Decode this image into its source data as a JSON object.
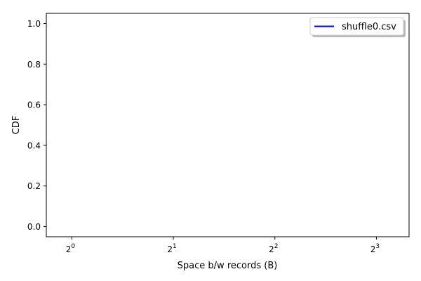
{
  "chart_data": {
    "type": "line",
    "title": "",
    "xlabel": "Space b/w records (B)",
    "ylabel": "CDF",
    "x_scale": "log2",
    "xlim": [
      0.84,
      10
    ],
    "ylim": [
      -0.05,
      1.05
    ],
    "x_ticks": [
      {
        "value": 1,
        "base": "2",
        "exp": "0"
      },
      {
        "value": 2,
        "base": "2",
        "exp": "1"
      },
      {
        "value": 4,
        "base": "2",
        "exp": "2"
      },
      {
        "value": 8,
        "base": "2",
        "exp": "3"
      }
    ],
    "y_ticks": [
      {
        "value": 0.0,
        "label": "0.0"
      },
      {
        "value": 0.2,
        "label": "0.2"
      },
      {
        "value": 0.4,
        "label": "0.4"
      },
      {
        "value": 0.6,
        "label": "0.6"
      },
      {
        "value": 0.8,
        "label": "0.8"
      },
      {
        "value": 1.0,
        "label": "1.0"
      }
    ],
    "grid": false,
    "legend_position": "top-right",
    "series": [
      {
        "name": "shuffle0.csv",
        "color": "#0000ff",
        "x": [],
        "y": []
      }
    ]
  }
}
